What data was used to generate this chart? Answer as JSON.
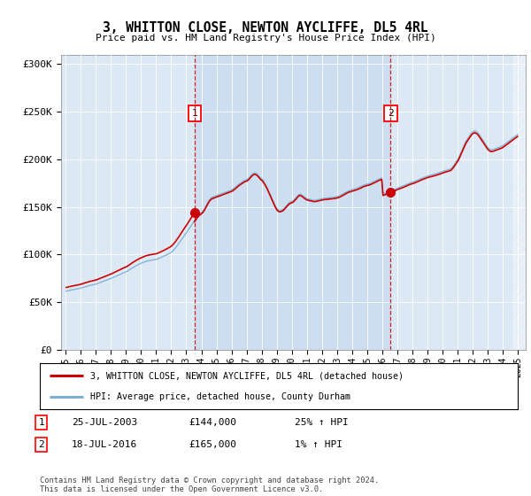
{
  "title": "3, WHITTON CLOSE, NEWTON AYCLIFFE, DL5 4RL",
  "subtitle": "Price paid vs. HM Land Registry's House Price Index (HPI)",
  "ylim": [
    0,
    310000
  ],
  "yticks": [
    0,
    50000,
    100000,
    150000,
    200000,
    250000,
    300000
  ],
  "ytick_labels": [
    "£0",
    "£50K",
    "£100K",
    "£150K",
    "£200K",
    "£250K",
    "£300K"
  ],
  "background_color": "#ffffff",
  "plot_bg_color": "#dce9f5",
  "shade_color": "#c5d8ef",
  "legend_line1_label": "3, WHITTON CLOSE, NEWTON AYCLIFFE, DL5 4RL (detached house)",
  "legend_line2_label": "HPI: Average price, detached house, County Durham",
  "line1_color": "#cc0000",
  "line2_color": "#7bafd4",
  "marker1_date": "25-JUL-2003",
  "marker1_price": 144000,
  "marker1_hpi_pct": "25%",
  "marker2_date": "18-JUL-2016",
  "marker2_price": 165000,
  "marker2_hpi_pct": "1%",
  "marker1_x": 2003.56,
  "marker2_x": 2016.54,
  "footer": "Contains HM Land Registry data © Crown copyright and database right 2024.\nThis data is licensed under the Open Government Licence v3.0.",
  "xtick_years": [
    1995,
    1996,
    1997,
    1998,
    1999,
    2000,
    2001,
    2002,
    2003,
    2004,
    2005,
    2006,
    2007,
    2008,
    2009,
    2010,
    2011,
    2012,
    2013,
    2014,
    2015,
    2016,
    2017,
    2018,
    2019,
    2020,
    2021,
    2022,
    2023,
    2024,
    2025
  ],
  "hpi_monthly_x": [
    1995.042,
    1995.125,
    1995.208,
    1995.292,
    1995.375,
    1995.458,
    1995.542,
    1995.625,
    1995.708,
    1995.792,
    1995.875,
    1995.958,
    1996.042,
    1996.125,
    1996.208,
    1996.292,
    1996.375,
    1996.458,
    1996.542,
    1996.625,
    1996.708,
    1996.792,
    1996.875,
    1996.958,
    1997.042,
    1997.125,
    1997.208,
    1997.292,
    1997.375,
    1997.458,
    1997.542,
    1997.625,
    1997.708,
    1997.792,
    1997.875,
    1997.958,
    1998.042,
    1998.125,
    1998.208,
    1998.292,
    1998.375,
    1998.458,
    1998.542,
    1998.625,
    1998.708,
    1998.792,
    1998.875,
    1998.958,
    1999.042,
    1999.125,
    1999.208,
    1999.292,
    1999.375,
    1999.458,
    1999.542,
    1999.625,
    1999.708,
    1999.792,
    1999.875,
    1999.958,
    2000.042,
    2000.125,
    2000.208,
    2000.292,
    2000.375,
    2000.458,
    2000.542,
    2000.625,
    2000.708,
    2000.792,
    2000.875,
    2000.958,
    2001.042,
    2001.125,
    2001.208,
    2001.292,
    2001.375,
    2001.458,
    2001.542,
    2001.625,
    2001.708,
    2001.792,
    2001.875,
    2001.958,
    2002.042,
    2002.125,
    2002.208,
    2002.292,
    2002.375,
    2002.458,
    2002.542,
    2002.625,
    2002.708,
    2002.792,
    2002.875,
    2002.958,
    2003.042,
    2003.125,
    2003.208,
    2003.292,
    2003.375,
    2003.458,
    2003.542,
    2003.625,
    2003.708,
    2003.792,
    2003.875,
    2003.958,
    2004.042,
    2004.125,
    2004.208,
    2004.292,
    2004.375,
    2004.458,
    2004.542,
    2004.625,
    2004.708,
    2004.792,
    2004.875,
    2004.958,
    2005.042,
    2005.125,
    2005.208,
    2005.292,
    2005.375,
    2005.458,
    2005.542,
    2005.625,
    2005.708,
    2005.792,
    2005.875,
    2005.958,
    2006.042,
    2006.125,
    2006.208,
    2006.292,
    2006.375,
    2006.458,
    2006.542,
    2006.625,
    2006.708,
    2006.792,
    2006.875,
    2006.958,
    2007.042,
    2007.125,
    2007.208,
    2007.292,
    2007.375,
    2007.458,
    2007.542,
    2007.625,
    2007.708,
    2007.792,
    2007.875,
    2007.958,
    2008.042,
    2008.125,
    2008.208,
    2008.292,
    2008.375,
    2008.458,
    2008.542,
    2008.625,
    2008.708,
    2008.792,
    2008.875,
    2008.958,
    2009.042,
    2009.125,
    2009.208,
    2009.292,
    2009.375,
    2009.458,
    2009.542,
    2009.625,
    2009.708,
    2009.792,
    2009.875,
    2009.958,
    2010.042,
    2010.125,
    2010.208,
    2010.292,
    2010.375,
    2010.458,
    2010.542,
    2010.625,
    2010.708,
    2010.792,
    2010.875,
    2010.958,
    2011.042,
    2011.125,
    2011.208,
    2011.292,
    2011.375,
    2011.458,
    2011.542,
    2011.625,
    2011.708,
    2011.792,
    2011.875,
    2011.958,
    2012.042,
    2012.125,
    2012.208,
    2012.292,
    2012.375,
    2012.458,
    2012.542,
    2012.625,
    2012.708,
    2012.792,
    2012.875,
    2012.958,
    2013.042,
    2013.125,
    2013.208,
    2013.292,
    2013.375,
    2013.458,
    2013.542,
    2013.625,
    2013.708,
    2013.792,
    2013.875,
    2013.958,
    2014.042,
    2014.125,
    2014.208,
    2014.292,
    2014.375,
    2014.458,
    2014.542,
    2014.625,
    2014.708,
    2014.792,
    2014.875,
    2014.958,
    2015.042,
    2015.125,
    2015.208,
    2015.292,
    2015.375,
    2015.458,
    2015.542,
    2015.625,
    2015.708,
    2015.792,
    2015.875,
    2015.958,
    2016.042,
    2016.125,
    2016.208,
    2016.292,
    2016.375,
    2016.458,
    2016.542,
    2016.625,
    2016.708,
    2016.792,
    2016.875,
    2016.958,
    2017.042,
    2017.125,
    2017.208,
    2017.292,
    2017.375,
    2017.458,
    2017.542,
    2017.625,
    2017.708,
    2017.792,
    2017.875,
    2017.958,
    2018.042,
    2018.125,
    2018.208,
    2018.292,
    2018.375,
    2018.458,
    2018.542,
    2018.625,
    2018.708,
    2018.792,
    2018.875,
    2018.958,
    2019.042,
    2019.125,
    2019.208,
    2019.292,
    2019.375,
    2019.458,
    2019.542,
    2019.625,
    2019.708,
    2019.792,
    2019.875,
    2019.958,
    2020.042,
    2020.125,
    2020.208,
    2020.292,
    2020.375,
    2020.458,
    2020.542,
    2020.625,
    2020.708,
    2020.792,
    2020.875,
    2020.958,
    2021.042,
    2021.125,
    2021.208,
    2021.292,
    2021.375,
    2021.458,
    2021.542,
    2021.625,
    2021.708,
    2021.792,
    2021.875,
    2021.958,
    2022.042,
    2022.125,
    2022.208,
    2022.292,
    2022.375,
    2022.458,
    2022.542,
    2022.625,
    2022.708,
    2022.792,
    2022.875,
    2022.958,
    2023.042,
    2023.125,
    2023.208,
    2023.292,
    2023.375,
    2023.458,
    2023.542,
    2023.625,
    2023.708,
    2023.792,
    2023.875,
    2023.958,
    2024.042,
    2024.125,
    2024.208,
    2024.292,
    2024.375,
    2024.458,
    2024.542,
    2024.625,
    2024.708,
    2024.792,
    2024.875,
    2024.958
  ],
  "hpi_monthly_y": [
    61500,
    61800,
    62100,
    62400,
    62700,
    63000,
    63200,
    63500,
    63700,
    64000,
    64200,
    64500,
    64800,
    65200,
    65600,
    66000,
    66400,
    66800,
    67200,
    67500,
    67800,
    68100,
    68400,
    68700,
    69000,
    69500,
    70000,
    70500,
    71000,
    71500,
    72000,
    72500,
    73000,
    73500,
    74000,
    74500,
    75000,
    75600,
    76200,
    76800,
    77400,
    78000,
    78600,
    79200,
    79800,
    80400,
    81000,
    81500,
    82000,
    82800,
    83600,
    84500,
    85400,
    86200,
    87000,
    87800,
    88500,
    89200,
    89900,
    90500,
    91000,
    91600,
    92100,
    92600,
    93000,
    93300,
    93600,
    93900,
    94100,
    94300,
    94500,
    94700,
    95000,
    95500,
    96000,
    96600,
    97200,
    97800,
    98400,
    99000,
    99700,
    100400,
    101100,
    101800,
    102800,
    104000,
    105500,
    107000,
    108800,
    110600,
    112400,
    114300,
    116200,
    118100,
    120000,
    121800,
    123600,
    125500,
    127500,
    129500,
    131500,
    133500,
    135500,
    137500,
    139500,
    141000,
    142500,
    143500,
    144500,
    146000,
    148000,
    150500,
    153000,
    155500,
    157500,
    159000,
    160000,
    160500,
    161000,
    161500,
    162000,
    162500,
    163000,
    163500,
    164000,
    164500,
    165000,
    165500,
    166000,
    166500,
    167000,
    167500,
    168000,
    169000,
    170000,
    171200,
    172400,
    173500,
    174500,
    175400,
    176300,
    177200,
    178000,
    178500,
    179000,
    180000,
    181500,
    183000,
    184500,
    185500,
    186000,
    185500,
    184500,
    183000,
    181500,
    180000,
    179000,
    177000,
    175000,
    172500,
    170000,
    167000,
    164000,
    161000,
    158000,
    155000,
    152000,
    149500,
    147500,
    146500,
    146000,
    146500,
    147000,
    148000,
    149500,
    151000,
    152500,
    154000,
    155000,
    155500,
    156000,
    157000,
    158500,
    160000,
    161500,
    163000,
    163500,
    163000,
    162000,
    161000,
    160000,
    159000,
    158500,
    158200,
    157800,
    157500,
    157200,
    157000,
    157000,
    157200,
    157500,
    157800,
    158200,
    158500,
    158800,
    159000,
    159200,
    159400,
    159500,
    159600,
    159700,
    159800,
    160000,
    160200,
    160400,
    160600,
    161000,
    161500,
    162000,
    162800,
    163500,
    164200,
    165000,
    165800,
    166500,
    167000,
    167400,
    167800,
    168200,
    168600,
    169000,
    169500,
    170000,
    170500,
    171200,
    171800,
    172500,
    173000,
    173500,
    173800,
    174000,
    174500,
    175000,
    175600,
    176200,
    176800,
    177500,
    178200,
    178900,
    179500,
    180000,
    180400,
    163500,
    164000,
    164500,
    165000,
    165500,
    166000,
    166500,
    167000,
    167600,
    168200,
    168800,
    169400,
    170000,
    170500,
    171000,
    171500,
    172000,
    172500,
    173100,
    173700,
    174300,
    174900,
    175400,
    175800,
    176200,
    176700,
    177200,
    177800,
    178400,
    179000,
    179600,
    180200,
    180700,
    181200,
    181700,
    182200,
    182700,
    183000,
    183300,
    183700,
    184000,
    184400,
    184800,
    185200,
    185600,
    186100,
    186600,
    187000,
    187500,
    188000,
    188400,
    188800,
    189200,
    189600,
    190000,
    191500,
    193000,
    195000,
    197000,
    199000,
    201000,
    204000,
    207000,
    210000,
    213000,
    216000,
    219000,
    221000,
    223000,
    225000,
    227000,
    228500,
    229500,
    230000,
    229500,
    228500,
    227000,
    225000,
    223000,
    221000,
    219000,
    217000,
    215000,
    213000,
    211500,
    210500,
    210000,
    210200,
    210500,
    211000,
    211500,
    212000,
    212500,
    213000,
    213500,
    214000,
    215000,
    216000,
    217000,
    218000,
    219000,
    220000,
    221000,
    222000,
    223000,
    224000,
    225000,
    226000
  ]
}
